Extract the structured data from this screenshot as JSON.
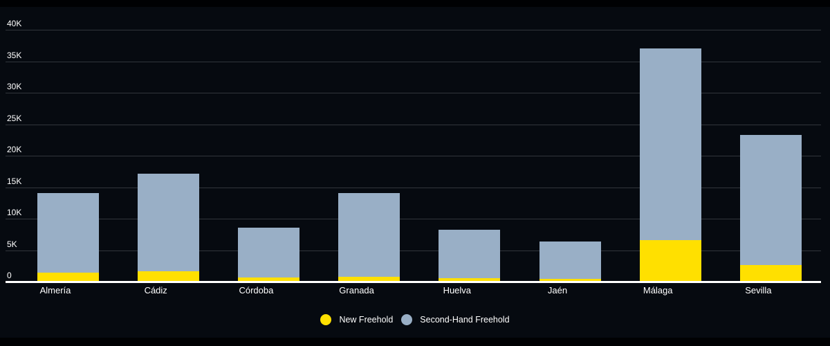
{
  "chart_data": {
    "type": "bar",
    "stacked": true,
    "title": "",
    "xlabel": "",
    "ylabel": "",
    "categories": [
      "Almería",
      "Cádiz",
      "Córdoba",
      "Granada",
      "Huelva",
      "Jaén",
      "Málaga",
      "Sevilla"
    ],
    "series": [
      {
        "name": "New Freehold",
        "color": "#FFE000",
        "values": [
          1400,
          1650,
          700,
          800,
          600,
          400,
          6600,
          2600
        ]
      },
      {
        "name": "Second-Hand Freehold",
        "color": "#99AFC6",
        "values": [
          12700,
          15550,
          7900,
          13300,
          7600,
          6000,
          30400,
          20700
        ]
      }
    ],
    "totals": [
      14100,
      17200,
      8600,
      14100,
      8200,
      6400,
      37000,
      23300
    ],
    "ylim": [
      0,
      40000
    ],
    "ytick_step": 5000,
    "ytick_labels": [
      "0",
      "5K",
      "10K",
      "15K",
      "20K",
      "25K",
      "30K",
      "35K",
      "40K"
    ],
    "grid": true,
    "legend_position": "bottom"
  },
  "colors": {
    "background": "#000103",
    "plot_background": "#060a10",
    "gridline": "#31363c",
    "axis_line": "#ffffff",
    "text": "#ffffff",
    "new_freehold": "#FFE000",
    "second_hand_freehold": "#99AFC6"
  }
}
